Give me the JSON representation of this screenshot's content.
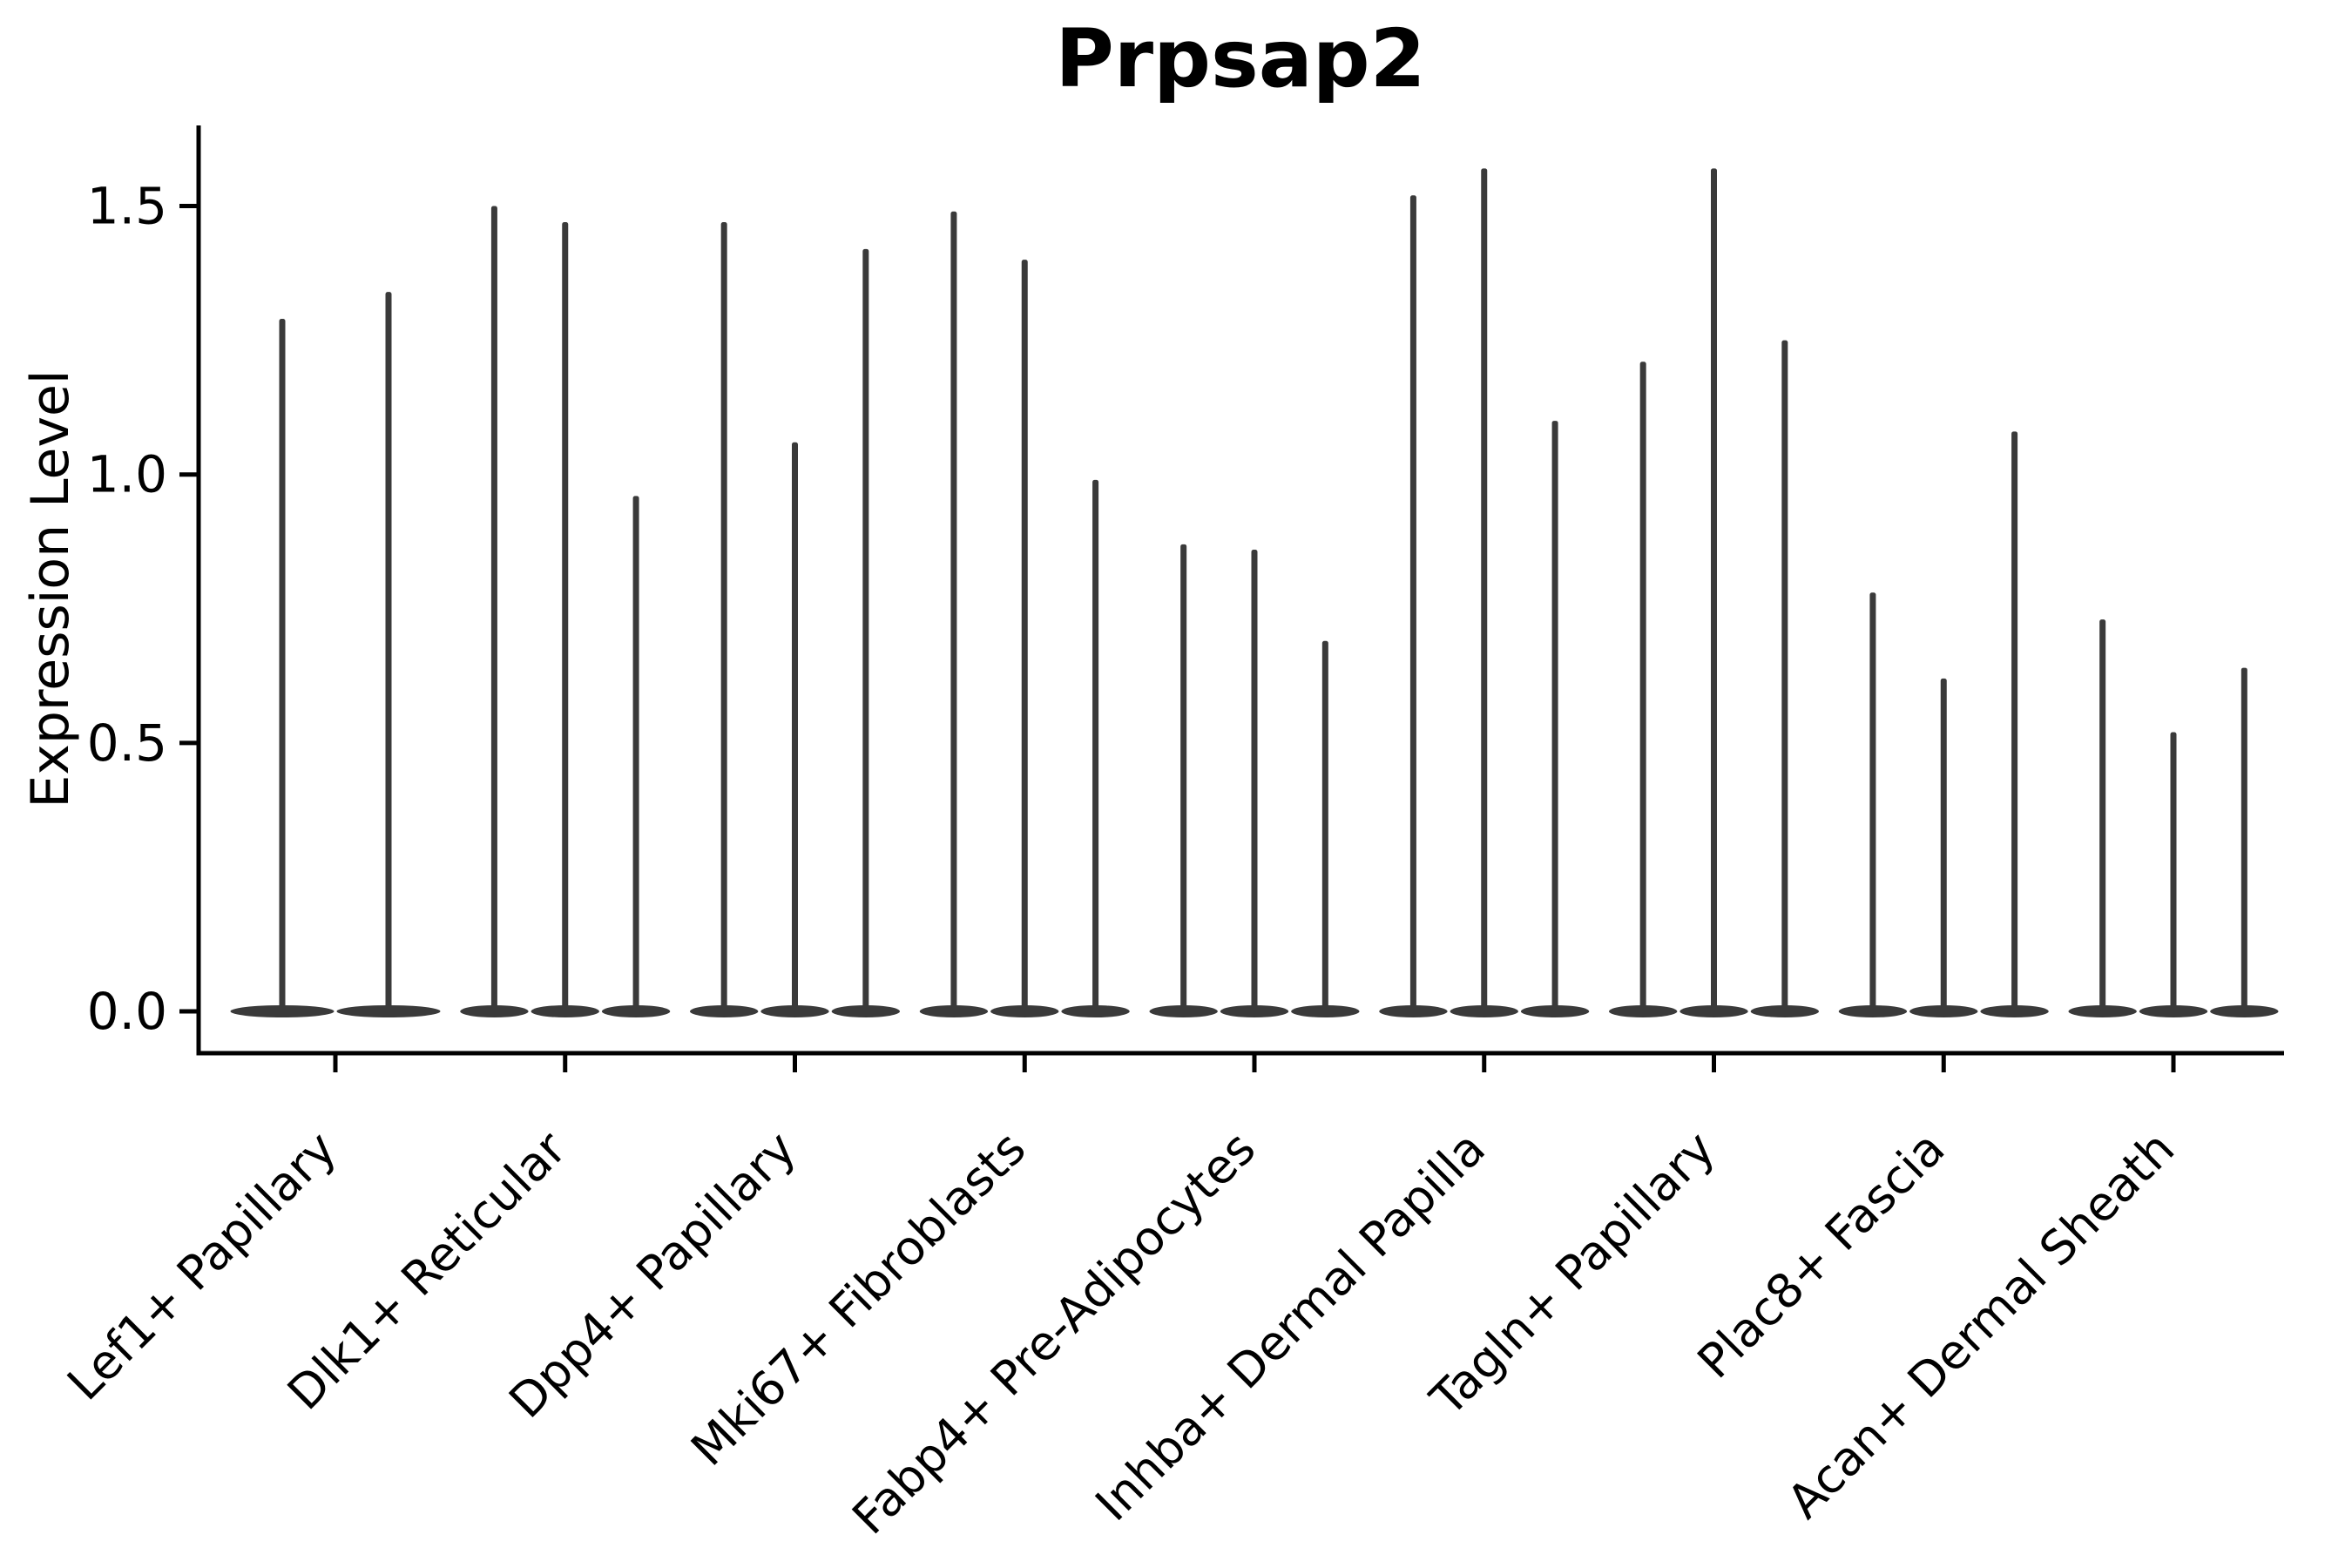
{
  "chart_data": {
    "type": "violin",
    "title": "Prpsap2",
    "ylabel": "Expression Level",
    "xlabel": "",
    "y_tick_values": [
      0.0,
      0.5,
      1.0,
      1.5
    ],
    "y_tick_labels": [
      "0.0",
      "0.5",
      "1.0",
      "1.5"
    ],
    "ylim": [
      -0.08,
      1.65
    ],
    "grid": false,
    "legend_position": "none",
    "categories": [
      "Lef1+ Papillary",
      "Dlk1+ Reticular",
      "Dpp4+ Papillary",
      "Mki67+ Fibroblasts",
      "Fabp4+ Pre-Adipocytes",
      "Inhba+ Dermal Papilla",
      "Tagln+ Papillary",
      "Plac8+ Fascia",
      "Acan+ Dermal Sheath"
    ],
    "groups": [
      {
        "category": "Lef1+ Papillary",
        "violin_max_values": [
          1.29,
          1.34
        ]
      },
      {
        "category": "Dlk1+ Reticular",
        "violin_max_values": [
          1.5,
          1.47,
          0.96
        ]
      },
      {
        "category": "Dpp4+ Papillary",
        "violin_max_values": [
          1.47,
          1.06,
          1.42
        ]
      },
      {
        "category": "Mki67+ Fibroblasts",
        "violin_max_values": [
          1.49,
          1.4,
          0.99
        ]
      },
      {
        "category": "Fabp4+ Pre-Adipocytes",
        "violin_max_values": [
          0.87,
          0.86,
          0.69
        ]
      },
      {
        "category": "Inhba+ Dermal Papilla",
        "violin_max_values": [
          1.52,
          1.57,
          1.1
        ]
      },
      {
        "category": "Tagln+ Papillary",
        "violin_max_values": [
          1.21,
          1.57,
          1.25
        ]
      },
      {
        "category": "Plac8+ Fascia",
        "violin_max_values": [
          0.78,
          0.62,
          1.08
        ]
      },
      {
        "category": "Acan+ Dermal Sheath",
        "violin_max_values": [
          0.73,
          0.52,
          0.64
        ]
      }
    ],
    "violin_shape_note": "zero-inflated: wide flat bulge at 0 with thin spike up to max value",
    "colors": {
      "violin": "#3a3a3a",
      "axis": "#000000",
      "text": "#000000",
      "background": "#ffffff"
    }
  }
}
